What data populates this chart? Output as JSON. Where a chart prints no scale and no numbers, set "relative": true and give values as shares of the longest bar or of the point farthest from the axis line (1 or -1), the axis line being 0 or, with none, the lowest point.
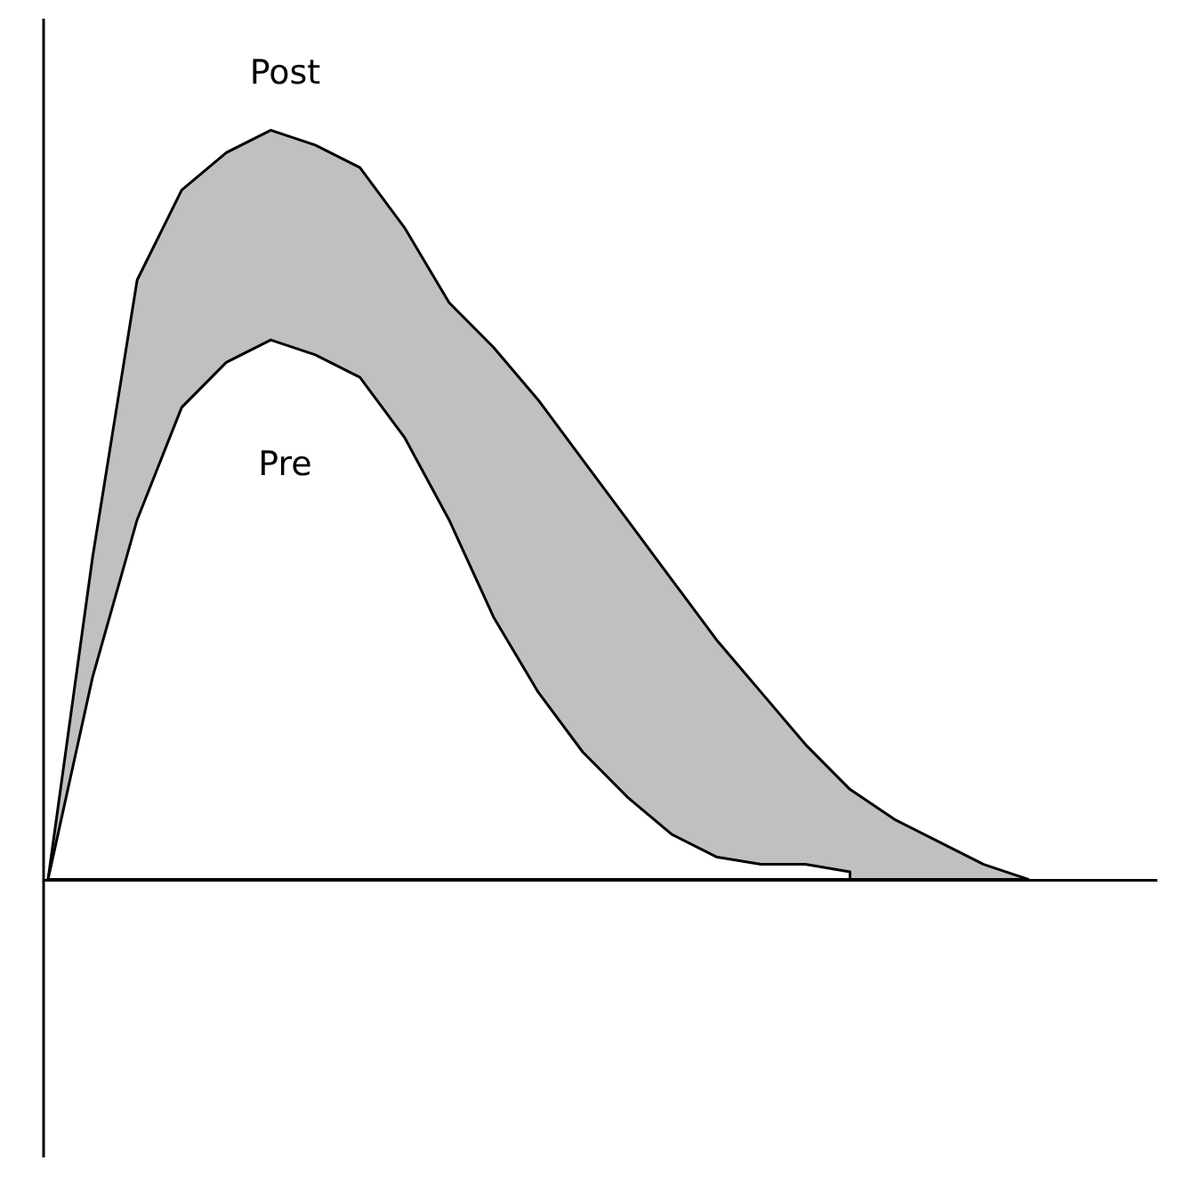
{
  "chart_data": {
    "type": "area",
    "relative": true,
    "categories": [
      null,
      null,
      null,
      null,
      null,
      null,
      null,
      null,
      null,
      null,
      null,
      null,
      null,
      null,
      null,
      null,
      null,
      null,
      null,
      null,
      null,
      null,
      null
    ],
    "series": [
      {
        "name": "Post",
        "color": "#c0c0c0",
        "values": [
          0,
          0.43,
          0.8,
          0.92,
          0.97,
          1,
          0.98,
          0.95,
          0.87,
          0.77,
          0.71,
          0.64,
          0.56,
          0.48,
          0.4,
          0.32,
          0.25,
          0.18,
          0.12,
          0.08,
          0.05,
          0.02,
          0
        ]
      },
      {
        "name": "Pre",
        "color": "#ffffff",
        "values": [
          0,
          0.27,
          0.48,
          0.63,
          0.69,
          0.72,
          0.7,
          0.67,
          0.59,
          0.48,
          0.35,
          0.25,
          0.17,
          0.11,
          0.06,
          0.03,
          0.02,
          0.02,
          0.01,
          null,
          null,
          null,
          null
        ]
      }
    ],
    "grid": false,
    "legend": false,
    "marker": "none",
    "line_style": "solid"
  }
}
